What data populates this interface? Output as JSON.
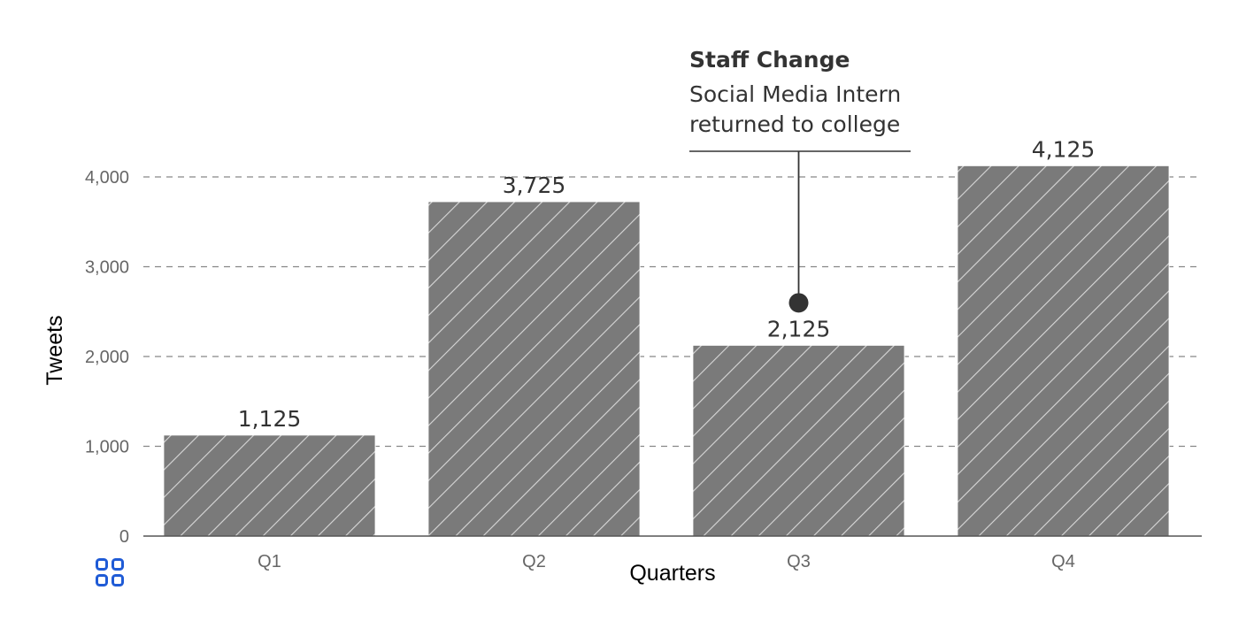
{
  "chart_data": {
    "type": "bar",
    "categories": [
      "Q1",
      "Q2",
      "Q3",
      "Q4"
    ],
    "values": [
      1125,
      3725,
      2125,
      4125
    ],
    "value_labels": [
      "1,125",
      "3,725",
      "2,125",
      "4,125"
    ],
    "xlabel": "Quarters",
    "ylabel": "Tweets",
    "ylim": [
      0,
      4000
    ],
    "yticks": [
      0,
      1000,
      2000,
      3000,
      4000
    ],
    "ytick_labels": [
      "0",
      "1,000",
      "2,000",
      "3,000",
      "4,000"
    ],
    "grid": true,
    "bar_color": "#7a7a7a",
    "pattern": "diagonal-hatch",
    "annotation": {
      "category": "Q3",
      "title": "Staff Change",
      "lines": [
        "Social Media Intern",
        "returned to college"
      ]
    }
  },
  "toolbar": {
    "icon": "grid-four-squares-icon",
    "icon_color": "#1f5bd6"
  }
}
